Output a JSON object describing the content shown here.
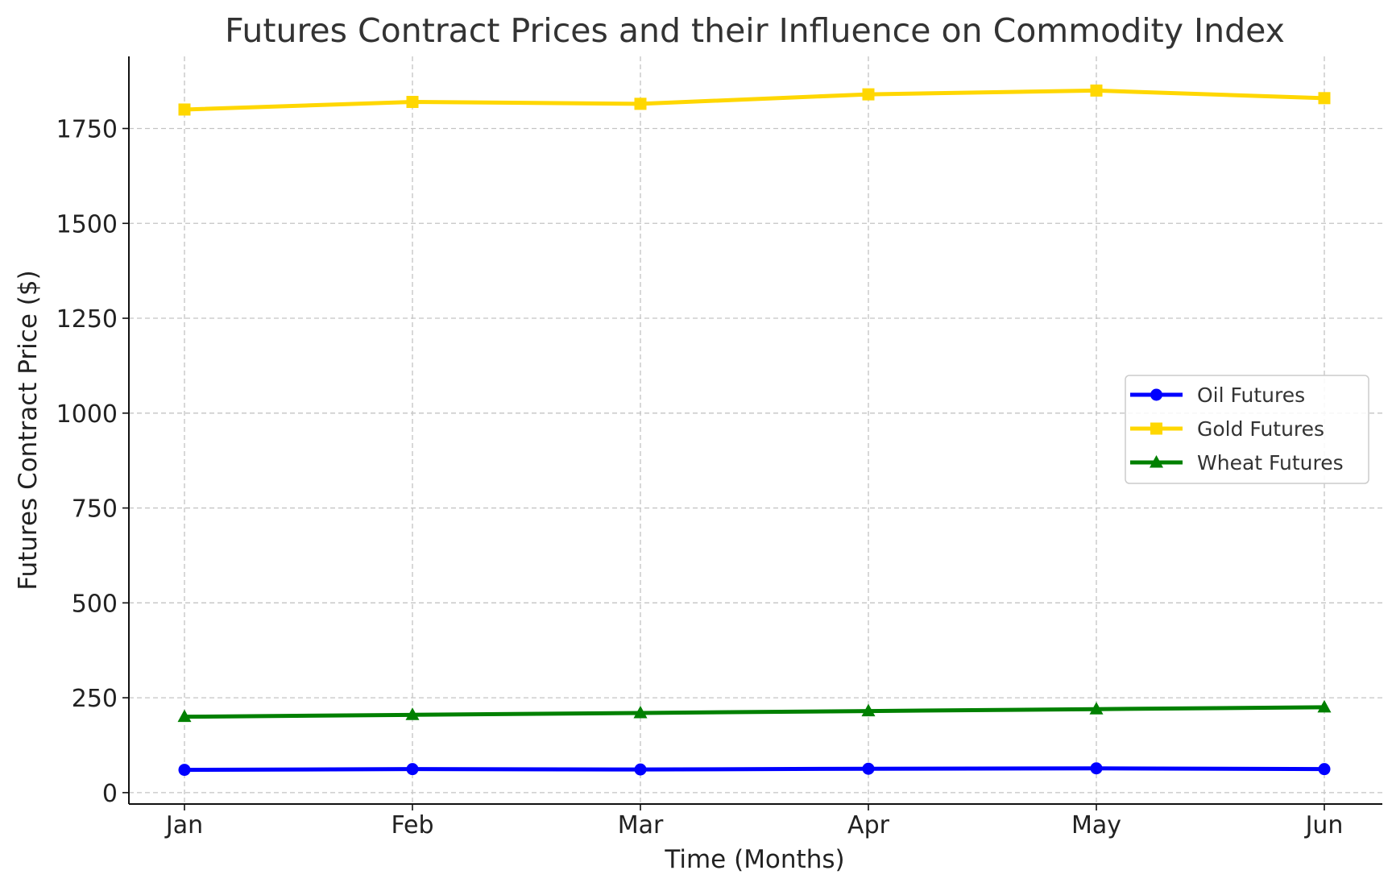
{
  "chart_data": {
    "type": "line",
    "title": "Futures Contract Prices and their Influence on Commodity Index",
    "xlabel": "Time (Months)",
    "ylabel": "Futures Contract Price ($)",
    "categories": [
      "Jan",
      "Feb",
      "Mar",
      "Apr",
      "May",
      "Jun"
    ],
    "ylim": [
      -30,
      1940
    ],
    "yticks": [
      0,
      250,
      500,
      750,
      1000,
      1250,
      1500,
      1750
    ],
    "grid": true,
    "legend_position": "center-right",
    "series": [
      {
        "name": "Oil Futures",
        "color": "#0000ff",
        "marker": "circle",
        "values": [
          60,
          62,
          61,
          63,
          64,
          62
        ]
      },
      {
        "name": "Gold Futures",
        "color": "#ffd700",
        "marker": "square",
        "values": [
          1800,
          1820,
          1815,
          1840,
          1850,
          1830
        ]
      },
      {
        "name": "Wheat Futures",
        "color": "#008000",
        "marker": "triangle",
        "values": [
          200,
          205,
          210,
          215,
          220,
          225
        ]
      }
    ]
  }
}
